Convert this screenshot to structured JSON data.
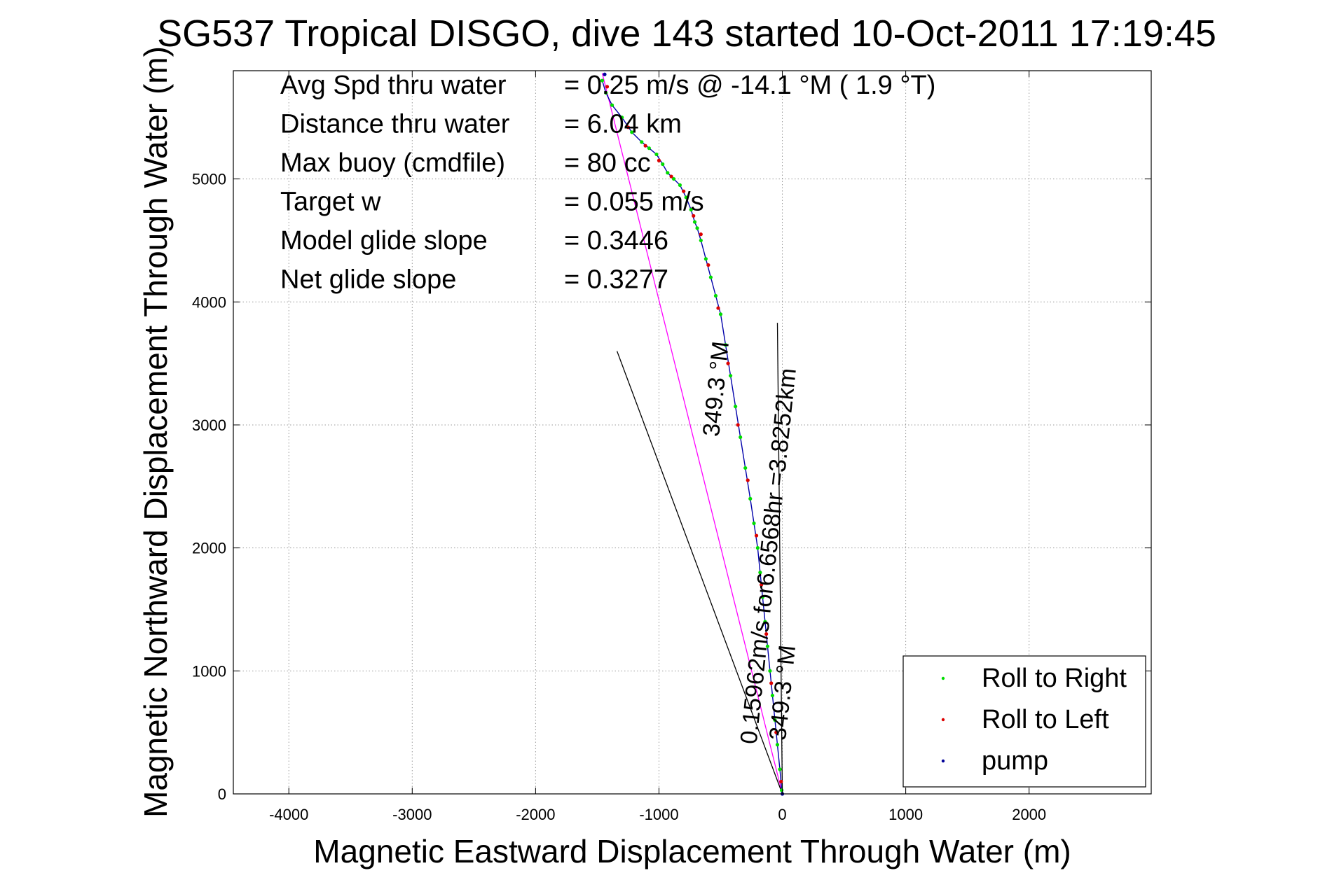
{
  "chart_data": {
    "type": "scatter",
    "title": "SG537 Tropical DISGO, dive 143 started 10-Oct-2011 17:19:45",
    "xlabel": "Magnetic Eastward Displacement Through Water (m)",
    "ylabel": "Magnetic Northward Displacement Through Water (m)",
    "xlim": [
      -4450,
      2990
    ],
    "ylim": [
      0,
      5880
    ],
    "xticks": [
      -4000,
      -3000,
      -2000,
      -1000,
      0,
      1000,
      2000
    ],
    "yticks": [
      0,
      1000,
      2000,
      3000,
      4000,
      5000
    ],
    "grid": true,
    "legend_position": "bottom-right",
    "stats": [
      {
        "label": "Avg Spd thru water",
        "value": "=  0.25 m/s @ -14.1 °M (  1.9 °T)"
      },
      {
        "label": "Distance thru water",
        "value": "=  6.04 km"
      },
      {
        "label": "Max buoy (cmdfile)",
        "value": "= 80 cc"
      },
      {
        "label": "Target w",
        "value": "= 0.055 m/s"
      },
      {
        "label": "Model glide slope",
        "value": "= 0.3446"
      },
      {
        "label": "Net glide slope",
        "value": "= 0.3277"
      }
    ],
    "annotations": [
      {
        "text": "0.15962m/s for6.6568hr =3.8252km",
        "x": -210,
        "y": 400,
        "angle_deg": -84
      },
      {
        "text": "349.3 °M",
        "x": 25,
        "y": 430,
        "angle_deg": -84
      },
      {
        "text": "349.3 °M",
        "x": -515,
        "y": 2900,
        "angle_deg": -84
      }
    ],
    "series": [
      {
        "name": "Roll to Right",
        "color": "#00dd00",
        "marker": "dot",
        "x": [
          -5,
          -20,
          -40,
          -60,
          -80,
          -100,
          -120,
          -140,
          -160,
          -180,
          -200,
          -230,
          -260,
          -300,
          -340,
          -380,
          -420,
          -460,
          -500,
          -540,
          -580,
          -620,
          -660,
          -690,
          -710,
          -740,
          -780,
          -830,
          -880,
          -930,
          -970,
          -1020,
          -1080,
          -1140,
          -1220,
          -1300,
          -1380,
          -1430,
          -1460
        ],
        "y": [
          30,
          200,
          400,
          600,
          800,
          1000,
          1200,
          1400,
          1600,
          1800,
          2000,
          2200,
          2400,
          2650,
          2900,
          3150,
          3400,
          3650,
          3900,
          4050,
          4200,
          4350,
          4500,
          4600,
          4650,
          4750,
          4850,
          4950,
          5000,
          5050,
          5120,
          5200,
          5250,
          5300,
          5380,
          5500,
          5600,
          5700,
          5800
        ]
      },
      {
        "name": "Roll to Left",
        "color": "#dd0000",
        "marker": "dot",
        "x": [
          -10,
          -50,
          -90,
          -130,
          -170,
          -210,
          -280,
          -360,
          -440,
          -520,
          -600,
          -660,
          -720,
          -800,
          -900,
          -1000,
          -1110,
          -1250,
          -1420
        ],
        "y": [
          100,
          500,
          900,
          1300,
          1700,
          2100,
          2550,
          3000,
          3500,
          3950,
          4300,
          4550,
          4700,
          4900,
          5020,
          5150,
          5270,
          5420,
          5750
        ]
      },
      {
        "name": "pump",
        "color": "#000099",
        "marker": "dot",
        "x": [
          0,
          -1440
        ],
        "y": [
          0,
          5850
        ]
      }
    ],
    "lines": [
      {
        "name": "",
        "color": "#ff00ff",
        "x": [
          0,
          -1460
        ],
        "y": [
          0,
          5860
        ]
      },
      {
        "name": "",
        "color": "#000000",
        "x": [
          0,
          -1340
        ],
        "y": [
          0,
          3600
        ]
      },
      {
        "name": "",
        "color": "#000000",
        "x": [
          0,
          -40
        ],
        "y": [
          0,
          3830
        ]
      }
    ]
  }
}
